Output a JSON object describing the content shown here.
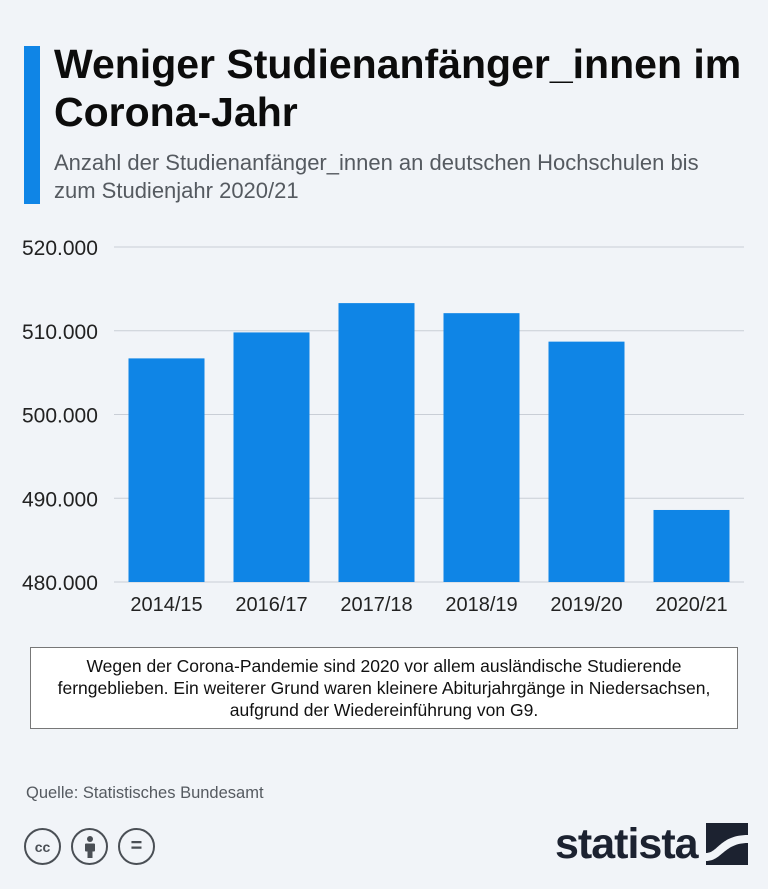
{
  "header": {
    "title": "Weniger Studienanfänger_innen im Corona-Jahr",
    "subtitle": "Anzahl der Studienanfänger_innen an deutschen Hochschulen bis zum Studienjahr 2020/21"
  },
  "chart_data": {
    "type": "bar",
    "categories": [
      "2014/15",
      "2016/17",
      "2017/18",
      "2018/19",
      "2019/20",
      "2020/21"
    ],
    "values": [
      506700,
      509800,
      513300,
      512100,
      508700,
      488600
    ],
    "ylim": [
      480000,
      520000
    ],
    "yticks": [
      480000,
      490000,
      500000,
      510000,
      520000
    ],
    "ytick_labels": [
      "480.000",
      "490.000",
      "500.000",
      "510.000",
      "520.000"
    ],
    "grid": true,
    "bar_color": "#0f85e6",
    "grid_color": "#c9ced6"
  },
  "note": "Wegen der Corona-Pandemie sind 2020 vor allem ausländische Studierende ferngeblieben. Ein weiterer Grund waren kleinere Abiturjahrgänge in Niedersachsen, aufgrund der Wiedereinführung von G9.",
  "source": "Quelle: Statistisches Bundesamt",
  "license_icons": [
    "cc-icon",
    "attribution-icon",
    "no-derivatives-icon"
  ],
  "license_glyphs": [
    "cc",
    "="
  ],
  "brand": "statista",
  "accent_color": "#0f85e6"
}
